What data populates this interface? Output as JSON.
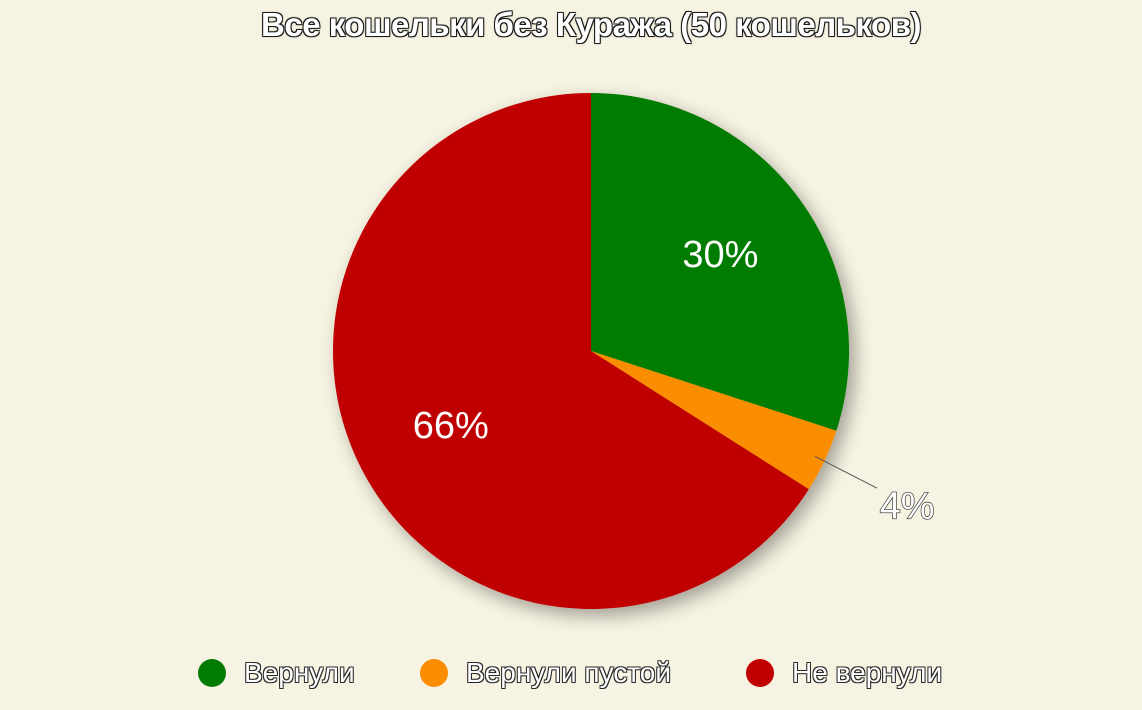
{
  "chart_data": {
    "type": "pie",
    "title": "Все кошельки без Куража (50 кошельков)",
    "slices": [
      {
        "name": "Вернули",
        "value": 30,
        "label": "30%",
        "color": "#027b02"
      },
      {
        "name": "Вернули пустой",
        "value": 4,
        "label": "4%",
        "color": "#fb8d00"
      },
      {
        "name": "Не вернули",
        "value": 66,
        "label": "66%",
        "color": "#c00000"
      }
    ],
    "legend_position": "bottom"
  },
  "legend": [
    {
      "label": "Вернули",
      "color": "#027b02"
    },
    {
      "label": "Вернули пустой",
      "color": "#fb8d00"
    },
    {
      "label": "Не вернули",
      "color": "#c00000"
    }
  ]
}
